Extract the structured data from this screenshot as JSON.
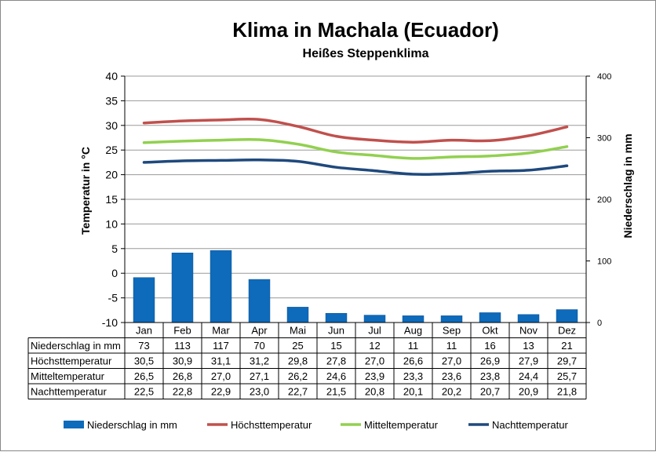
{
  "chart_data": {
    "type": "bar+line",
    "title": "Klima in Machala (Ecuador)",
    "subtitle": "Heißes Steppenklima",
    "categories": [
      "Jan",
      "Feb",
      "Mar",
      "Apr",
      "Mai",
      "Jun",
      "Jul",
      "Aug",
      "Sep",
      "Okt",
      "Nov",
      "Dez"
    ],
    "ylabel_left": "Temperatur in °C",
    "ylabel_right": "Niederschlag in mm",
    "ylim_left": [
      -10,
      40
    ],
    "yticks_left": [
      -10,
      -5,
      0,
      5,
      10,
      15,
      20,
      25,
      30,
      35,
      40
    ],
    "ylim_right": [
      0,
      400
    ],
    "yticks_right": [
      0,
      100,
      200,
      300,
      400
    ],
    "grid": true,
    "legend_position": "bottom",
    "series": [
      {
        "name": "Niederschlag in mm",
        "kind": "bar",
        "axis": "right",
        "color": "#0e6abb",
        "values": [
          73,
          113,
          117,
          70,
          25,
          15,
          12,
          11,
          11,
          16,
          13,
          21
        ],
        "labels": [
          "73",
          "113",
          "117",
          "70",
          "25",
          "15",
          "12",
          "11",
          "11",
          "16",
          "13",
          "21"
        ]
      },
      {
        "name": "Höchsttemperatur",
        "kind": "line",
        "axis": "left",
        "color": "#c0504d",
        "values": [
          30.5,
          30.9,
          31.1,
          31.2,
          29.8,
          27.8,
          27.0,
          26.6,
          27.0,
          26.9,
          27.9,
          29.7
        ],
        "labels": [
          "30,5",
          "30,9",
          "31,1",
          "31,2",
          "29,8",
          "27,8",
          "27,0",
          "26,6",
          "27,0",
          "26,9",
          "27,9",
          "29,7"
        ]
      },
      {
        "name": "Mitteltemperatur",
        "kind": "line",
        "axis": "left",
        "color": "#92d050",
        "values": [
          26.5,
          26.8,
          27.0,
          27.1,
          26.2,
          24.6,
          23.9,
          23.3,
          23.6,
          23.8,
          24.4,
          25.7
        ],
        "labels": [
          "26,5",
          "26,8",
          "27,0",
          "27,1",
          "26,2",
          "24,6",
          "23,9",
          "23,3",
          "23,6",
          "23,8",
          "24,4",
          "25,7"
        ]
      },
      {
        "name": "Nachttemperatur",
        "kind": "line",
        "axis": "left",
        "color": "#1f497d",
        "values": [
          22.5,
          22.8,
          22.9,
          23.0,
          22.7,
          21.5,
          20.8,
          20.1,
          20.2,
          20.7,
          20.9,
          21.8
        ],
        "labels": [
          "22,5",
          "22,8",
          "22,9",
          "23,0",
          "22,7",
          "21,5",
          "20,8",
          "20,1",
          "20,2",
          "20,7",
          "20,9",
          "21,8"
        ]
      }
    ]
  },
  "colors": {
    "precip": "#0e6abb",
    "high": "#c0504d",
    "mean": "#92d050",
    "low": "#1f497d",
    "grid": "#9a9a9a"
  }
}
